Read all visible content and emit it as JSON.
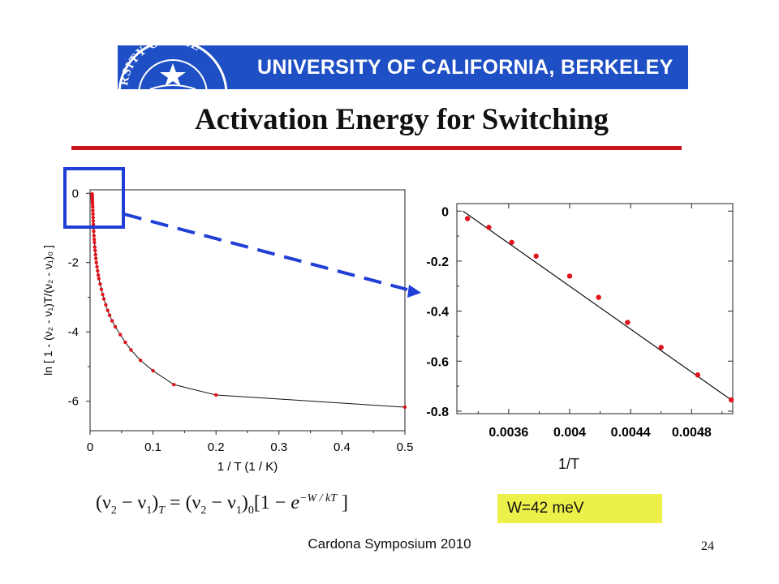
{
  "header": {
    "banner_text": "UNIVERSITY OF CALIFORNIA, BERKELEY",
    "seal_text": "RSITY OF CAL"
  },
  "slide": {
    "title": "Activation Energy for Switching",
    "footer": "Cardona Symposium 2010",
    "page_number": "24",
    "callout": "W=42 meV",
    "equation_html": "(&nu;<sub>2</sub> &minus; &nu;<sub>1</sub>)<sub><i>T</i></sub> = (&nu;<sub>2</sub> &minus; &nu;<sub>1</sub>)<sub>0</sub>[1 &minus; <i>e</i><sup>&minus;<i>W</i> / <i>kT</i></sup> ]"
  },
  "colors": {
    "banner": "#1f4fc4",
    "rule": "#c8141c",
    "callout": "#eef04a",
    "marker": "#e0141c",
    "zoom": "#1f3fd6"
  },
  "chart_data": [
    {
      "type": "line",
      "xlabel": "1 / T  (1 / K)",
      "ylabel": "ln [ 1 - (ν₂ - ν₁)T/(ν₂ - ν₁)₀ ]",
      "xlim": [
        0,
        0.5
      ],
      "ylim": [
        -6.85,
        0.1
      ],
      "xticks": [
        "0",
        "0.1",
        "0.2",
        "0.3",
        "0.4",
        "0.5"
      ],
      "yticks": [
        "0",
        "-2",
        "-4",
        "-6"
      ],
      "series": [
        {
          "marker": "dot",
          "x": [
            0.0033,
            0.0034,
            0.0035,
            0.0036,
            0.0037,
            0.0038,
            0.004,
            0.0042,
            0.0044,
            0.0046,
            0.0048,
            0.005,
            0.0052,
            0.0055,
            0.0058,
            0.0062,
            0.0066,
            0.007,
            0.0075,
            0.008,
            0.0086,
            0.0092,
            0.01,
            0.011,
            0.012,
            0.013,
            0.014,
            0.016,
            0.018,
            0.02,
            0.022,
            0.025,
            0.028,
            0.031,
            0.035,
            0.04,
            0.048,
            0.056,
            0.065,
            0.08,
            0.1,
            0.133,
            0.2,
            0.5
          ],
          "y": [
            -0.02,
            -0.05,
            -0.1,
            -0.15,
            -0.2,
            -0.25,
            -0.32,
            -0.4,
            -0.5,
            -0.6,
            -0.7,
            -0.8,
            -0.9,
            -1.0,
            -1.1,
            -1.22,
            -1.33,
            -1.42,
            -1.55,
            -1.65,
            -1.77,
            -1.88,
            -2.0,
            -2.12,
            -2.24,
            -2.36,
            -2.46,
            -2.62,
            -2.77,
            -2.92,
            -3.05,
            -3.22,
            -3.38,
            -3.52,
            -3.68,
            -3.85,
            -4.08,
            -4.3,
            -4.52,
            -4.82,
            -5.12,
            -5.52,
            -5.82,
            -6.17
          ]
        }
      ]
    },
    {
      "type": "scatter",
      "xlabel": "1/T",
      "xlim": [
        0.00326,
        0.00507
      ],
      "ylim": [
        -0.81,
        0.03
      ],
      "xticks": [
        "0.0036",
        "0.004",
        "0.0044",
        "0.0048"
      ],
      "yticks": [
        "0",
        "-0.2",
        "-0.4",
        "-0.6",
        "-0.8"
      ],
      "series": [
        {
          "marker": "dot",
          "x": [
            0.00333,
            0.00347,
            0.00362,
            0.00378,
            0.004,
            0.00419,
            0.00438,
            0.0046,
            0.00484,
            0.00506
          ],
          "y": [
            -0.03,
            -0.065,
            -0.125,
            -0.18,
            -0.26,
            -0.345,
            -0.445,
            -0.545,
            -0.655,
            -0.755
          ]
        },
        {
          "type": "fit-line",
          "x": [
            0.0033,
            0.00506
          ],
          "y": [
            0.0,
            -0.755
          ]
        }
      ]
    }
  ]
}
